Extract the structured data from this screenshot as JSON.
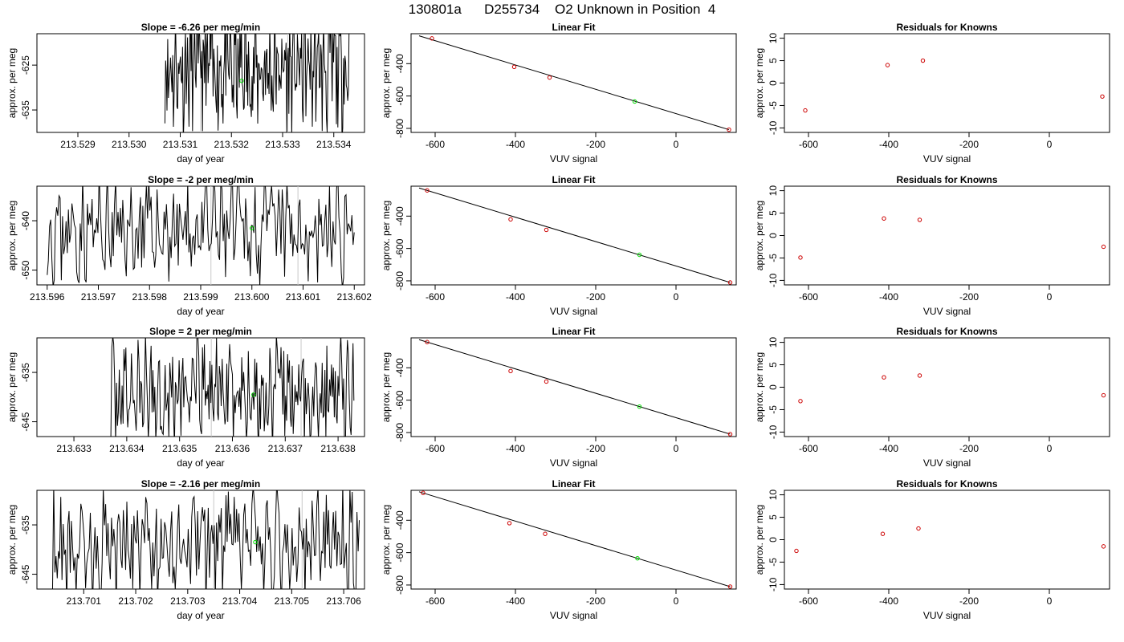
{
  "page": {
    "title": "130801a      D255734    O2 Unknown in Position  4"
  },
  "colors": {
    "axis": "#000000",
    "trace": "#000000",
    "known_point": "#cc0000",
    "unknown_point": "#00dd00",
    "vline": "#c8c8c8"
  },
  "chart_data": [
    {
      "type": "line",
      "panel": "time-series",
      "row": 0,
      "title": "Slope =  -6.26  per meg/min",
      "xlabel": "day of year",
      "ylabel": "approx. per meg",
      "xlim": [
        213.5282,
        213.5346
      ],
      "ylim": [
        -640,
        -618
      ],
      "xticks": [
        "213.529",
        "213.530",
        "213.531",
        "213.532",
        "213.533",
        "213.534"
      ],
      "yticks": [
        "-625",
        "-635"
      ],
      "vlines": [
        213.5314,
        213.5331
      ],
      "unknown_point": {
        "x": 213.5322,
        "y": -628.5
      },
      "trace": {
        "x0": 213.5307,
        "x1": 213.5343,
        "seed": 11,
        "mid": -626,
        "amp": 12
      }
    },
    {
      "type": "scatter",
      "panel": "linear-fit",
      "row": 0,
      "title": "Linear Fit",
      "xlabel": "VUV signal",
      "ylabel": "approx. per meg",
      "xlim": [
        -660,
        150
      ],
      "ylim": [
        -825,
        -215
      ],
      "xticks": [
        "-600",
        "-400",
        "-200",
        "0"
      ],
      "yticks": [
        "-400",
        "-600",
        "-800"
      ],
      "known_points": [
        {
          "x": -608,
          "y": -244
        },
        {
          "x": -403,
          "y": -420
        },
        {
          "x": -315,
          "y": -486
        },
        {
          "x": 132,
          "y": -808
        }
      ],
      "unknown_point": {
        "x": -103,
        "y": -634
      },
      "fit_line": {
        "x": [
          -640,
          132
        ],
        "y": [
          -228,
          -808
        ]
      }
    },
    {
      "type": "scatter",
      "panel": "residuals",
      "row": 0,
      "title": "Residuals for Knowns",
      "xlabel": "VUV signal",
      "ylabel": "approx. per meg",
      "xlim": [
        -660,
        150
      ],
      "ylim": [
        -11,
        11
      ],
      "xticks": [
        "-600",
        "-400",
        "-200",
        "0"
      ],
      "yticks": [
        "-10",
        "-5",
        "0",
        "5",
        "10"
      ],
      "points": [
        {
          "x": -608,
          "y": -6.1
        },
        {
          "x": -403,
          "y": 4.0
        },
        {
          "x": -315,
          "y": 5.0
        },
        {
          "x": 132,
          "y": -3.0
        }
      ]
    },
    {
      "type": "line",
      "panel": "time-series",
      "row": 1,
      "title": "Slope =  -2  per meg/min",
      "xlabel": "day of year",
      "ylabel": "approx. per meg",
      "xlim": [
        213.5958,
        213.6022
      ],
      "ylim": [
        -653,
        -633
      ],
      "xticks": [
        "213.596",
        "213.597",
        "213.598",
        "213.599",
        "213.600",
        "213.601",
        "213.602"
      ],
      "yticks": [
        "-640",
        "-650"
      ],
      "vlines": [
        213.5992,
        213.6009
      ],
      "unknown_point": {
        "x": 213.6,
        "y": -641.5
      },
      "trace": {
        "x0": 213.596,
        "x1": 213.602,
        "seed": 23,
        "mid": -642,
        "amp": 9
      }
    },
    {
      "type": "scatter",
      "panel": "linear-fit",
      "row": 1,
      "title": "Linear Fit",
      "xlabel": "VUV signal",
      "ylabel": "approx. per meg",
      "xlim": [
        -660,
        150
      ],
      "ylim": [
        -825,
        -215
      ],
      "xticks": [
        "-600",
        "-400",
        "-200",
        "0"
      ],
      "yticks": [
        "-400",
        "-600",
        "-800"
      ],
      "known_points": [
        {
          "x": -620,
          "y": -241
        },
        {
          "x": -412,
          "y": -420
        },
        {
          "x": -323,
          "y": -485
        },
        {
          "x": 135,
          "y": -810
        }
      ],
      "unknown_point": {
        "x": -91,
        "y": -639
      },
      "fit_line": {
        "x": [
          -640,
          135
        ],
        "y": [
          -226,
          -810
        ]
      }
    },
    {
      "type": "scatter",
      "panel": "residuals",
      "row": 1,
      "title": "Residuals for Knowns",
      "xlabel": "VUV signal",
      "ylabel": "approx. per meg",
      "xlim": [
        -660,
        150
      ],
      "ylim": [
        -11,
        11
      ],
      "xticks": [
        "-600",
        "-400",
        "-200",
        "0"
      ],
      "yticks": [
        "-10",
        "-5",
        "0",
        "5",
        "10"
      ],
      "points": [
        {
          "x": -620,
          "y": -4.9
        },
        {
          "x": -412,
          "y": 3.8
        },
        {
          "x": -323,
          "y": 3.5
        },
        {
          "x": 135,
          "y": -2.5
        }
      ]
    },
    {
      "type": "line",
      "panel": "time-series",
      "row": 2,
      "title": "Slope =  2  per meg/min",
      "xlabel": "day of year",
      "ylabel": "approx. per meg",
      "xlim": [
        213.6323,
        213.6385
      ],
      "ylim": [
        -648,
        -628
      ],
      "xticks": [
        "213.633",
        "213.634",
        "213.635",
        "213.636",
        "213.637",
        "213.638"
      ],
      "yticks": [
        "-635",
        "-645"
      ],
      "vlines": [
        213.6356,
        213.6373
      ],
      "unknown_point": {
        "x": 213.6364,
        "y": -639.5
      },
      "trace": {
        "x0": 213.6337,
        "x1": 213.6383,
        "seed": 37,
        "mid": -639,
        "amp": 9
      }
    },
    {
      "type": "scatter",
      "panel": "linear-fit",
      "row": 2,
      "title": "Linear Fit",
      "xlabel": "VUV signal",
      "ylabel": "approx. per meg",
      "xlim": [
        -660,
        150
      ],
      "ylim": [
        -825,
        -215
      ],
      "xticks": [
        "-600",
        "-400",
        "-200",
        "0"
      ],
      "yticks": [
        "-400",
        "-600",
        "-800"
      ],
      "known_points": [
        {
          "x": -620,
          "y": -241
        },
        {
          "x": -412,
          "y": -420
        },
        {
          "x": -323,
          "y": -485
        },
        {
          "x": 135,
          "y": -810
        }
      ],
      "unknown_point": {
        "x": -91,
        "y": -640
      },
      "fit_line": {
        "x": [
          -640,
          135
        ],
        "y": [
          -226,
          -810
        ]
      }
    },
    {
      "type": "scatter",
      "panel": "residuals",
      "row": 2,
      "title": "Residuals for Knowns",
      "xlabel": "VUV signal",
      "ylabel": "approx. per meg",
      "xlim": [
        -660,
        150
      ],
      "ylim": [
        -11,
        11
      ],
      "xticks": [
        "-600",
        "-400",
        "-200",
        "0"
      ],
      "yticks": [
        "-10",
        "-5",
        "0",
        "5",
        "10"
      ],
      "points": [
        {
          "x": -620,
          "y": -3.1
        },
        {
          "x": -412,
          "y": 2.2
        },
        {
          "x": -323,
          "y": 2.6
        },
        {
          "x": 135,
          "y": -1.8
        }
      ]
    },
    {
      "type": "line",
      "panel": "time-series",
      "row": 3,
      "title": "Slope =  -2.16  per meg/min",
      "xlabel": "day of year",
      "ylabel": "approx. per meg",
      "xlim": [
        213.7001,
        213.7064
      ],
      "ylim": [
        -648,
        -628
      ],
      "xticks": [
        "213.701",
        "213.702",
        "213.703",
        "213.704",
        "213.705",
        "213.706"
      ],
      "yticks": [
        "-635",
        "-645"
      ],
      "vlines": [
        213.7035,
        213.7052
      ],
      "unknown_point": {
        "x": 213.7043,
        "y": -638.5
      },
      "trace": {
        "x0": 213.7004,
        "x1": 213.7063,
        "seed": 53,
        "mid": -639,
        "amp": 10
      }
    },
    {
      "type": "scatter",
      "panel": "linear-fit",
      "row": 3,
      "title": "Linear Fit",
      "xlabel": "VUV signal",
      "ylabel": "approx. per meg",
      "xlim": [
        -660,
        150
      ],
      "ylim": [
        -825,
        -215
      ],
      "xticks": [
        "-600",
        "-400",
        "-200",
        "0"
      ],
      "yticks": [
        "-400",
        "-600",
        "-800"
      ],
      "known_points": [
        {
          "x": -630,
          "y": -231
        },
        {
          "x": -415,
          "y": -418
        },
        {
          "x": -326,
          "y": -484
        },
        {
          "x": 135,
          "y": -810
        }
      ],
      "unknown_point": {
        "x": -96,
        "y": -635
      },
      "fit_line": {
        "x": [
          -640,
          135
        ],
        "y": [
          -224,
          -810
        ]
      }
    },
    {
      "type": "scatter",
      "panel": "residuals",
      "row": 3,
      "title": "Residuals for Knowns",
      "xlabel": "VUV signal",
      "ylabel": "approx. per meg",
      "xlim": [
        -660,
        150
      ],
      "ylim": [
        -11,
        11
      ],
      "xticks": [
        "-600",
        "-400",
        "-200",
        "0"
      ],
      "yticks": [
        "-10",
        "-5",
        "0",
        "5",
        "10"
      ],
      "points": [
        {
          "x": -630,
          "y": -2.5
        },
        {
          "x": -415,
          "y": 1.3
        },
        {
          "x": -326,
          "y": 2.5
        },
        {
          "x": 135,
          "y": -1.5
        }
      ]
    }
  ]
}
